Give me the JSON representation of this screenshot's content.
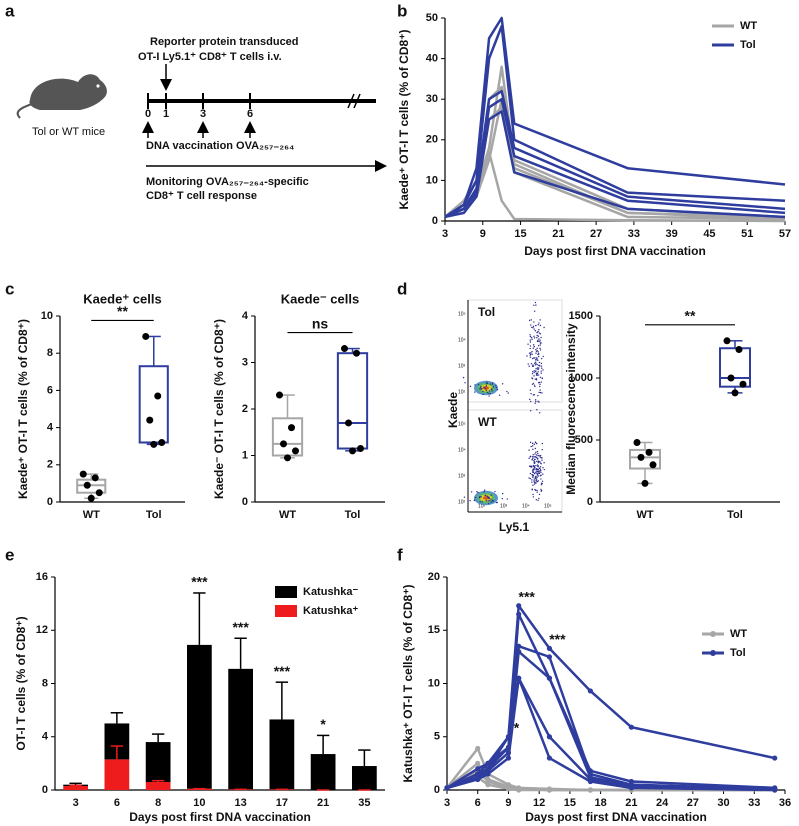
{
  "panel_labels": [
    "a",
    "b",
    "c",
    "d",
    "e",
    "f"
  ],
  "diagram": {
    "transfer_line1": "Reporter protein transduced",
    "transfer_line2": "OT-I Ly5.1⁺ CD8⁺ T cells i.v.",
    "mice": "Tol or WT mice",
    "days": [
      0,
      1,
      3,
      6
    ],
    "vaccination": "DNA vaccination OVA₂₅₇₋₂₆₄",
    "monitoring_line1": "Monitoring OVA₂₅₇₋₂₆₄-specific",
    "monitoring_line2": "CD8⁺ T cell response"
  },
  "flow": {
    "top_label": "Tol",
    "bottom_label": "WT",
    "y_label": "Kaede",
    "x_label": "Ly5.1",
    "axis_ticks": [
      "10²",
      "10³",
      "10⁴",
      "10⁵"
    ]
  },
  "chart_data": [
    {
      "type": "line",
      "x_label": "Days post first DNA vaccination",
      "y_label": "Kaede⁺ OT-I T cells (% of CD8⁺)",
      "x": [
        3,
        6,
        8,
        10,
        12,
        14,
        32,
        57
      ],
      "xlim": [
        3,
        57
      ],
      "xticks": [
        3,
        9,
        15,
        21,
        27,
        33,
        39,
        45,
        51,
        57
      ],
      "ylim": [
        0,
        50
      ],
      "yticks": [
        0,
        10,
        20,
        30,
        40,
        50
      ],
      "legend": "upper right",
      "markers": false,
      "series": [
        {
          "name": "WT",
          "color": "#a6a6a6",
          "values": [
            [
              1,
              3,
              8,
              18,
              38,
              15,
              3,
              1
            ],
            [
              1,
              4,
              7,
              30,
              33,
              14,
              2,
              0.5
            ],
            [
              1,
              5,
              10,
              25,
              28,
              13,
              2,
              1
            ],
            [
              1,
              3,
              6,
              15,
              30,
              12,
              1,
              0.5
            ],
            [
              1,
              3,
              7,
              17,
              5,
              0.5,
              0.2,
              0
            ]
          ]
        },
        {
          "name": "Tol",
          "color": "#2e3d9e",
          "values": [
            [
              1,
              4,
              13,
              45,
              50,
              24,
              13,
              9
            ],
            [
              1,
              4,
              10,
              40,
              48,
              20,
              7,
              5
            ],
            [
              1,
              3,
              8,
              30,
              32,
              18,
              6,
              3
            ],
            [
              1,
              3,
              7,
              28,
              30,
              16,
              5,
              2
            ],
            [
              1,
              2,
              6,
              25,
              27,
              12,
              3,
              1
            ]
          ]
        }
      ]
    },
    {
      "type": "box",
      "title": "Kaede⁺ cells",
      "y_label": "Kaede⁺ OT-I T cells (% of CD8⁺)",
      "categories": [
        "WT",
        "Tol"
      ],
      "colors": [
        "#a6a6a6",
        "#2e3d9e"
      ],
      "ylim": [
        0,
        10
      ],
      "yticks": [
        0,
        2,
        4,
        6,
        8,
        10
      ],
      "significance": "**",
      "boxes": [
        {
          "min": 0.2,
          "q1": 0.5,
          "median": 0.9,
          "q3": 1.2,
          "max": 1.5
        },
        {
          "min": 3.1,
          "q1": 3.2,
          "median": 3.2,
          "q3": 7.3,
          "max": 8.9
        }
      ],
      "points": [
        [
          1.5,
          1.3,
          0.9,
          0.5,
          0.2
        ],
        [
          8.9,
          5.7,
          4.4,
          3.2,
          3.1
        ]
      ]
    },
    {
      "type": "box",
      "title": "Kaede⁻ cells",
      "y_label": "Kaede⁻ OT-I T cells (% of CD8⁺)",
      "categories": [
        "WT",
        "Tol"
      ],
      "colors": [
        "#a6a6a6",
        "#2e3d9e"
      ],
      "ylim": [
        0,
        4
      ],
      "yticks": [
        0,
        1,
        2,
        3,
        4
      ],
      "significance": "ns",
      "boxes": [
        {
          "min": 0.95,
          "q1": 1.0,
          "median": 1.25,
          "q3": 1.8,
          "max": 2.3
        },
        {
          "min": 1.1,
          "q1": 1.15,
          "median": 1.7,
          "q3": 3.2,
          "max": 3.3
        }
      ],
      "points": [
        [
          2.3,
          1.6,
          1.25,
          1.1,
          0.95
        ],
        [
          3.3,
          3.2,
          1.7,
          1.15,
          1.1
        ]
      ]
    },
    {
      "type": "box",
      "y_label": "Median fluorescence intensity",
      "categories": [
        "WT",
        "Tol"
      ],
      "colors": [
        "#a6a6a6",
        "#2e3d9e"
      ],
      "ylim": [
        0,
        1500
      ],
      "yticks": [
        0,
        500,
        1000,
        1500
      ],
      "significance": "**",
      "boxes": [
        {
          "min": 150,
          "q1": 270,
          "median": 360,
          "q3": 420,
          "max": 480
        },
        {
          "min": 880,
          "q1": 930,
          "median": 1000,
          "q3": 1240,
          "max": 1300
        }
      ],
      "points": [
        [
          480,
          400,
          360,
          300,
          150
        ],
        [
          1300,
          1230,
          1000,
          950,
          880
        ]
      ]
    },
    {
      "type": "stacked_bar",
      "x_label": "Days post first DNA vaccination",
      "y_label": "OT-I T cells (% of CD8⁺)",
      "categories": [
        "3",
        "6",
        "8",
        "10",
        "13",
        "17",
        "21",
        "35"
      ],
      "ylim": [
        0,
        16
      ],
      "yticks": [
        0,
        4,
        8,
        12,
        16
      ],
      "legend": "upper right",
      "series": [
        {
          "name": "Katushka⁻",
          "color": "#000000",
          "values": [
            0.1,
            2.7,
            3.0,
            10.8,
            9.05,
            5.25,
            2.7,
            1.8
          ],
          "errors": [
            0.1,
            0.8,
            0.6,
            3.9,
            2.3,
            2.8,
            1.4,
            1.2
          ]
        },
        {
          "name": "Katushka⁺",
          "color": "#ee1c1c",
          "values": [
            0.3,
            2.3,
            0.6,
            0.1,
            0.05,
            0.05,
            0,
            0
          ],
          "errors": [
            0.05,
            1.0,
            0.1,
            0,
            0,
            0,
            0,
            0
          ]
        }
      ],
      "annotations": [
        {
          "text": "***",
          "category": "10"
        },
        {
          "text": "***",
          "category": "13"
        },
        {
          "text": "***",
          "category": "17"
        },
        {
          "text": "*",
          "category": "21"
        }
      ]
    },
    {
      "type": "line",
      "x_label": "Days post first DNA vaccination",
      "y_label": "Katushka⁺ OT-I T cells (% of CD8⁺)",
      "x": [
        3,
        6,
        7,
        9,
        10,
        13,
        17,
        21,
        35
      ],
      "xlim": [
        3,
        36
      ],
      "xticks": [
        3,
        6,
        9,
        12,
        15,
        18,
        21,
        24,
        27,
        30,
        33,
        36
      ],
      "ylim": [
        0,
        20
      ],
      "yticks": [
        0,
        5,
        10,
        15,
        20
      ],
      "legend": "upper right",
      "markers": true,
      "series": [
        {
          "name": "WT",
          "color": "#a6a6a6",
          "values": [
            [
              0.2,
              3.9,
              1.5,
              0.5,
              0.2,
              0.1,
              0,
              0,
              0
            ],
            [
              0.2,
              2.5,
              1,
              0.3,
              0.1,
              0,
              0,
              0,
              0
            ],
            [
              0.2,
              1.8,
              0.8,
              0.2,
              0.1,
              0,
              0,
              0,
              0
            ],
            [
              0.2,
              1.2,
              0.5,
              0.1,
              0,
              0,
              0,
              0,
              0
            ]
          ]
        },
        {
          "name": "Tol",
          "color": "#2e3d9e",
          "values": [
            [
              0.2,
              1.5,
              2.5,
              5,
              17.3,
              13.3,
              9.3,
              5.9,
              3.0
            ],
            [
              0.2,
              1.2,
              2,
              4,
              16.5,
              10.5,
              1.8,
              0.8,
              0.2
            ],
            [
              0.2,
              1.5,
              2,
              5,
              13.5,
              12.5,
              1.5,
              0.5,
              0.1
            ],
            [
              0.2,
              1,
              1.8,
              3.5,
              13,
              10.5,
              1.2,
              0.4,
              0.1
            ],
            [
              0.2,
              2,
              2.5,
              4,
              10.5,
              5,
              1,
              0.3,
              0.1
            ],
            [
              0.2,
              1,
              1.5,
              3,
              10.5,
              3,
              0.8,
              0.2,
              0
            ]
          ]
        }
      ],
      "annotations": [
        {
          "text": "***",
          "x": 10
        },
        {
          "text": "***",
          "x": 13
        },
        {
          "text": "*",
          "x": 9
        }
      ]
    }
  ]
}
